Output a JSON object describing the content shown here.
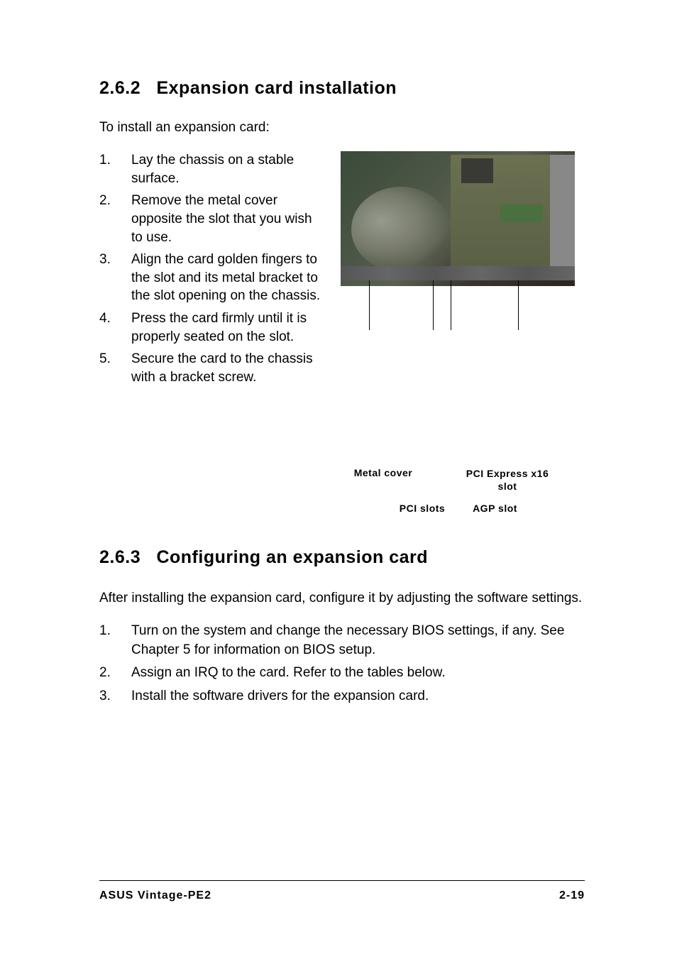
{
  "section1": {
    "number": "2.6.2",
    "title": "Expansion card installation",
    "intro": "To install an expansion card:",
    "steps": [
      {
        "num": "1.",
        "text": "Lay the chassis on a stable surface."
      },
      {
        "num": "2.",
        "text": "Remove the metal cover opposite the slot that you wish to use."
      },
      {
        "num": "3.",
        "text": "Align the card golden fingers to the slot and its metal bracket to the slot opening on the chassis."
      },
      {
        "num": "4.",
        "text": "Press the card firmly until it is properly seated on the slot."
      },
      {
        "num": "5.",
        "text": "Secure the card to the chassis with a bracket screw."
      }
    ],
    "figure": {
      "label_metal": "Metal cover",
      "label_pci_express": "PCI Express x16 slot",
      "label_pci_slots": "PCI slots",
      "label_agp": "AGP slot"
    }
  },
  "section2": {
    "number": "2.6.3",
    "title": "Configuring an expansion card",
    "intro": "After installing the expansion card, configure it by adjusting the software settings.",
    "steps": [
      {
        "num": "1.",
        "text": "Turn on the system and change the necessary BIOS settings, if any. See Chapter 5 for information on BIOS setup."
      },
      {
        "num": "2.",
        "text": "Assign an IRQ to the card. Refer to the tables below."
      },
      {
        "num": "3.",
        "text": "Install the software drivers for the expansion card."
      }
    ]
  },
  "footer": {
    "left": "ASUS Vintage-PE2",
    "right": "2-19"
  }
}
